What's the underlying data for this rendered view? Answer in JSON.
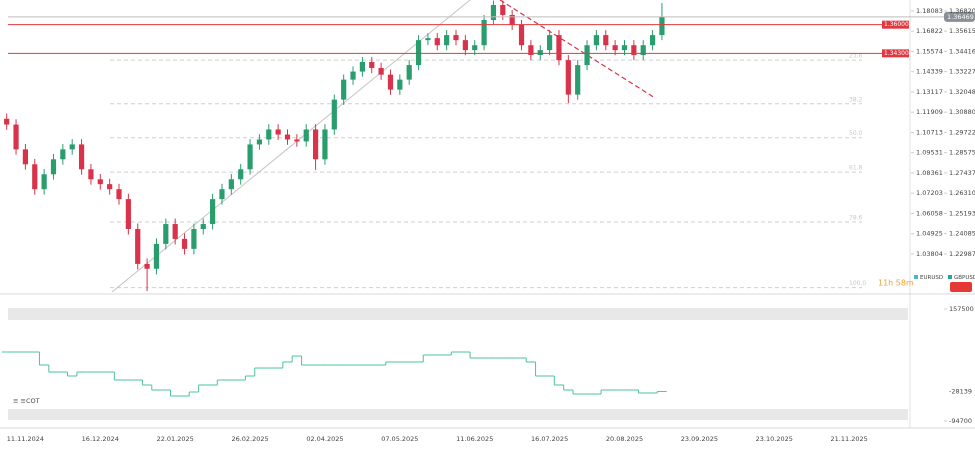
{
  "chart_data": [
    {
      "type": "candlestick",
      "categories": [
        null,
        null,
        "11.11.2024",
        null,
        null,
        null,
        null,
        null,
        null,
        null,
        "16.12.2024",
        null,
        null,
        null,
        null,
        null,
        null,
        null,
        "22.01.2025",
        null,
        null,
        null,
        null,
        null,
        null,
        null,
        "26.02.2025",
        null,
        null,
        null,
        null,
        null,
        null,
        null,
        "02.04.2025",
        null,
        null,
        null,
        null,
        null,
        null,
        null,
        "07.05.2025",
        null,
        null,
        null,
        null,
        null,
        null,
        null,
        "11.06.2025",
        null,
        null,
        null,
        null,
        null,
        null,
        null,
        "16.07.2025",
        null,
        null,
        null,
        null,
        null,
        null,
        null,
        "20.08.2025",
        null,
        null,
        null,
        null,
        null,
        null,
        null,
        "23.09.2025",
        null,
        null,
        null,
        null,
        null,
        null,
        null,
        "23.10.2025",
        null,
        null,
        null,
        null,
        null,
        null,
        null,
        "21.11.2025",
        null,
        null,
        null,
        null,
        null,
        null
      ],
      "open": [
        1.305,
        1.3017,
        1.2876,
        1.2792,
        1.2653,
        1.2736,
        1.282,
        1.2876,
        1.2904,
        1.2764,
        1.2708,
        1.2681,
        1.2653,
        1.2598,
        1.2434,
        1.2245,
        1.2219,
        1.2353,
        1.2461,
        1.238,
        1.2326,
        1.2434,
        1.2461,
        1.2598,
        1.2653,
        1.2708,
        1.2764,
        1.2904,
        1.2932,
        1.2989,
        1.296,
        1.2932,
        1.2921,
        1.2989,
        1.282,
        1.2989,
        1.316,
        1.3276,
        1.3323,
        1.3379,
        1.3344,
        1.3305,
        1.3218,
        1.3276,
        1.3361,
        1.3508,
        1.352,
        1.3478,
        1.3538,
        1.3508,
        1.3449,
        1.3478,
        1.3628,
        1.3718,
        1.3658,
        1.3598,
        1.3478,
        1.342,
        1.3449,
        1.3538,
        1.339,
        1.3189,
        1.3361,
        1.3478,
        1.3538,
        1.3478,
        1.3449,
        1.3478,
        1.342,
        1.3478,
        1.3538,
        null,
        null,
        null,
        null,
        null,
        null,
        null,
        null,
        null,
        null,
        null,
        null,
        null,
        null,
        null,
        null,
        null,
        null,
        null,
        null,
        null,
        null,
        null,
        null,
        null,
        null
      ],
      "high": [
        1.308,
        1.3047,
        1.2906,
        1.2822,
        1.2766,
        1.285,
        1.2906,
        1.2934,
        1.2934,
        1.2794,
        1.2738,
        1.2711,
        1.2683,
        1.2628,
        1.2464,
        1.2275,
        1.2383,
        1.2491,
        1.2491,
        1.241,
        1.2464,
        1.2491,
        1.2628,
        1.2683,
        1.2738,
        1.2794,
        1.2934,
        1.2962,
        1.3019,
        1.3019,
        1.299,
        1.2962,
        1.3019,
        1.3019,
        1.3019,
        1.319,
        1.3306,
        1.3353,
        1.3409,
        1.3409,
        1.3374,
        1.3335,
        1.3306,
        1.3391,
        1.3538,
        1.355,
        1.355,
        1.3568,
        1.3568,
        1.3538,
        1.3508,
        1.3658,
        1.3745,
        1.3745,
        1.3688,
        1.3628,
        1.3508,
        1.3479,
        1.3568,
        1.3568,
        1.342,
        1.3391,
        1.3508,
        1.3568,
        1.3568,
        1.3508,
        1.3508,
        1.3508,
        1.3508,
        1.3568,
        1.373,
        null,
        null,
        null,
        null,
        null,
        null,
        null,
        null,
        null,
        null,
        null,
        null,
        null,
        null,
        null,
        null,
        null,
        null,
        null,
        null,
        null,
        null,
        null,
        null,
        null,
        null
      ],
      "low": [
        1.2987,
        1.2846,
        1.2762,
        1.2623,
        1.2623,
        1.2706,
        1.279,
        1.2846,
        1.2734,
        1.2678,
        1.2651,
        1.2623,
        1.2568,
        1.2404,
        1.2215,
        1.21,
        1.2189,
        1.2323,
        1.235,
        1.2296,
        1.2296,
        1.2404,
        1.2431,
        1.2568,
        1.2623,
        1.2678,
        1.2734,
        1.2874,
        1.2902,
        1.293,
        1.2902,
        1.2891,
        1.2891,
        1.276,
        1.279,
        1.2959,
        1.313,
        1.3246,
        1.3293,
        1.3314,
        1.3275,
        1.3188,
        1.3188,
        1.3246,
        1.3331,
        1.3478,
        1.3448,
        1.3448,
        1.3478,
        1.3419,
        1.3419,
        1.3448,
        1.3598,
        1.3628,
        1.3568,
        1.3448,
        1.339,
        1.339,
        1.3419,
        1.336,
        1.314,
        1.3159,
        1.3331,
        1.3448,
        1.3448,
        1.3419,
        1.3419,
        1.339,
        1.339,
        1.3448,
        1.3508,
        null,
        null,
        null,
        null,
        null,
        null,
        null,
        null,
        null,
        null,
        null,
        null,
        null,
        null,
        null,
        null,
        null,
        null,
        null,
        null,
        null,
        null,
        null,
        null,
        null,
        null
      ],
      "close": [
        1.3017,
        1.2876,
        1.2792,
        1.2653,
        1.2736,
        1.282,
        1.2876,
        1.2904,
        1.2764,
        1.2708,
        1.2681,
        1.2653,
        1.2598,
        1.2434,
        1.2245,
        1.2219,
        1.2353,
        1.2461,
        1.238,
        1.2326,
        1.2434,
        1.2461,
        1.2598,
        1.2653,
        1.2708,
        1.2764,
        1.2904,
        1.2932,
        1.2989,
        1.296,
        1.2932,
        1.2921,
        1.2989,
        1.282,
        1.2989,
        1.316,
        1.3276,
        1.3323,
        1.3379,
        1.3344,
        1.3305,
        1.3218,
        1.3276,
        1.3361,
        1.3508,
        1.352,
        1.3478,
        1.3538,
        1.3508,
        1.3449,
        1.3478,
        1.3628,
        1.3718,
        1.3658,
        1.3598,
        1.3478,
        1.342,
        1.3449,
        1.3538,
        1.339,
        1.3189,
        1.3361,
        1.3478,
        1.3538,
        1.3478,
        1.3449,
        1.3478,
        1.342,
        1.3478,
        1.3538,
        1.3647,
        null,
        null,
        null,
        null,
        null,
        null,
        null,
        null,
        null,
        null,
        null,
        null,
        null,
        null,
        null,
        null,
        null,
        null,
        null,
        null,
        null,
        null,
        null,
        null,
        null,
        null
      ],
      "color_up": "#2a9d6f",
      "color_down": "#d8334a",
      "log_scale": true,
      "ylim": [
        1.2095,
        1.3748
      ],
      "yticks": [
        {
          "value": 1.3682,
          "label": "1.36820"
        },
        1.35615,
        1.34416,
        1.33227,
        1.32048,
        {
          "value": 1.3088,
          "label": "1.30880"
        },
        1.29722,
        1.28575,
        1.27437,
        {
          "value": 1.2631,
          "label": "1.26310"
        },
        1.25193,
        1.24085,
        1.22987
      ],
      "y2lim": [
        1.0173,
        1.1877
      ],
      "y2ticks": [
        1.18083,
        1.16822,
        1.15574,
        1.14339,
        1.13117,
        1.11909,
        1.10713,
        1.09531,
        1.08361,
        1.07203,
        1.06058,
        1.04925,
        1.03804
      ],
      "last_price": 1.36469,
      "price_lines": [
        {
          "value": 1.36,
          "label": "1.36000"
        },
        {
          "value": 1.343,
          "label": "1.34300"
        }
      ],
      "price_line_color": "#e0383e",
      "fibonacci": {
        "levels": [
          23.6,
          38.2,
          {
            "value": 50,
            "label": "50.0"
          },
          61.8,
          78.6,
          {
            "value": 100,
            "label": "100.0"
          }
        ],
        "prices": [
          1.339,
          1.3136,
          1.2942,
          1.2748,
          1.2472,
          1.2118
        ]
      },
      "legend": [
        {
          "name": "EURUSD",
          "color": "#4db6c8"
        },
        {
          "name": "GBPUSD",
          "color": "#26a69a"
        }
      ],
      "countdown": "11h 58m"
    },
    {
      "type": "step-line",
      "title": "COT",
      "values": [
        60700,
        60700,
        60700,
        60700,
        31400,
        15600,
        15600,
        6600,
        15600,
        15600,
        15600,
        15600,
        -2400,
        -2400,
        -2400,
        -13600,
        -24900,
        -24900,
        -38400,
        -38400,
        -29400,
        -13600,
        -13600,
        -2400,
        -2400,
        -2400,
        6600,
        24600,
        24600,
        24600,
        38200,
        51700,
        31400,
        31400,
        31400,
        31400,
        31400,
        31400,
        31400,
        31400,
        31400,
        38200,
        38200,
        38200,
        38200,
        53900,
        53900,
        53900,
        60700,
        60700,
        47200,
        47200,
        47200,
        47200,
        47200,
        47200,
        38200,
        6600,
        6600,
        -13600,
        -24900,
        -33900,
        -33900,
        -33900,
        -24900,
        -24900,
        -24900,
        -24900,
        -31600,
        -31600,
        -28139,
        null,
        null,
        null,
        null,
        null,
        null,
        null,
        null,
        null,
        null,
        null,
        null,
        null,
        null,
        null,
        null,
        null,
        null,
        null,
        null,
        null,
        null,
        null,
        null,
        null,
        null
      ],
      "color": "#4cc39a",
      "ylim": [
        -94700,
        157500
      ],
      "yticks": [
        -94700,
        157500
      ]
    }
  ]
}
